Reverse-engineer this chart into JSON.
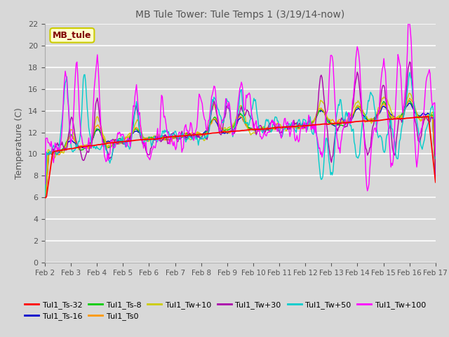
{
  "title": "MB Tule Tower: Tule Temps 1 (3/19/14-now)",
  "ylabel": "Temperature (C)",
  "xlim": [
    0,
    15
  ],
  "ylim": [
    0,
    22
  ],
  "yticks": [
    0,
    2,
    4,
    6,
    8,
    10,
    12,
    14,
    16,
    18,
    20,
    22
  ],
  "xtick_labels": [
    "Feb 2",
    "Feb 3",
    "Feb 4",
    "Feb 5",
    "Feb 6",
    "Feb 7",
    "Feb 8",
    "Feb 9",
    "Feb 10",
    "Feb 11",
    "Feb 12",
    "Feb 13",
    "Feb 14",
    "Feb 15",
    "Feb 16",
    "Feb 17"
  ],
  "background_color": "#d8d8d8",
  "plot_bg_color": "#d8d8d8",
  "grid_color": "white",
  "series_colors": {
    "Tul1_Ts-32": "#ff0000",
    "Tul1_Ts-16": "#0000cc",
    "Tul1_Ts-8": "#00cc00",
    "Tul1_Ts0": "#ff9900",
    "Tul1_Tw+10": "#cccc00",
    "Tul1_Tw+30": "#aa00aa",
    "Tul1_Tw+50": "#00cccc",
    "Tul1_Tw+100": "#ff00ff"
  },
  "legend_box_facecolor": "#ffffcc",
  "legend_box_edgecolor": "#cccc00",
  "legend_box_text": "MB_tule",
  "legend_box_text_color": "#800000",
  "title_color": "#555555",
  "axis_label_color": "#555555",
  "tick_color": "#555555"
}
